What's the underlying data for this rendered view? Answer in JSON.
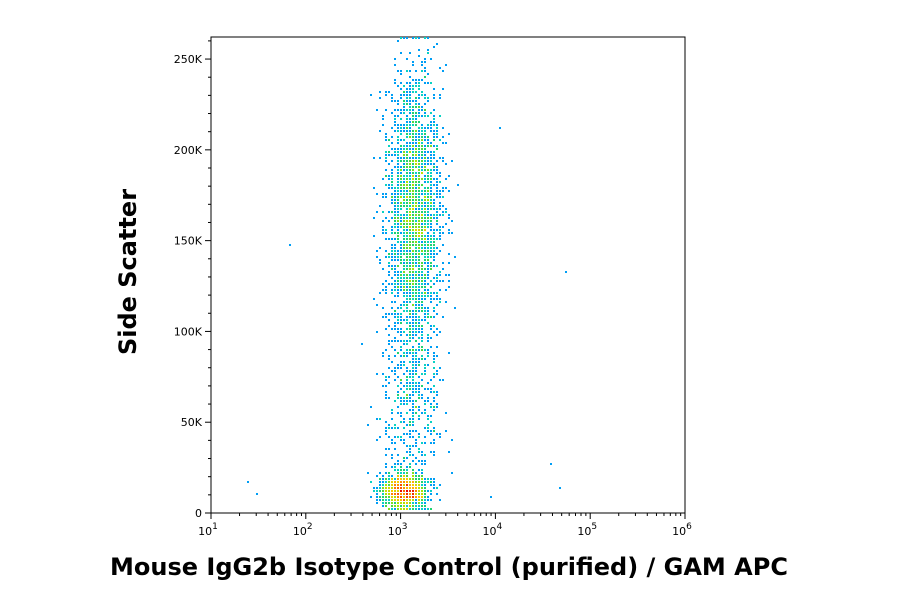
{
  "chart_data": {
    "type": "scatter",
    "title": "",
    "xlabel": "Mouse IgG2b Isotype Control (purified) / GAM APC",
    "ylabel": "Side Scatter",
    "xscale": "log",
    "xlim": [
      10,
      1000000
    ],
    "ylim": [
      0,
      262144
    ],
    "grid": false,
    "colormap": "density: blue → cyan → green → yellow → orange → red",
    "x_ticks": [
      {
        "value": 10,
        "base": "10",
        "exp": "1"
      },
      {
        "value": 100,
        "base": "10",
        "exp": "2"
      },
      {
        "value": 1000,
        "base": "10",
        "exp": "3"
      },
      {
        "value": 10000,
        "base": "10",
        "exp": "4"
      },
      {
        "value": 100000,
        "base": "10",
        "exp": "5"
      },
      {
        "value": 1000000,
        "base": "10",
        "exp": "6"
      }
    ],
    "y_ticks": [
      {
        "value": 0,
        "label": "0"
      },
      {
        "value": 50000,
        "label": "50K"
      },
      {
        "value": 100000,
        "label": "100K"
      },
      {
        "value": 150000,
        "label": "150K"
      },
      {
        "value": 200000,
        "label": "200K"
      },
      {
        "value": 250000,
        "label": "250K"
      }
    ],
    "populations": [
      {
        "name": "",
        "x_center": 1100,
        "y_center": 12000,
        "x_spread_log": 0.11,
        "y_spread": 5000,
        "points": 1400
      },
      {
        "name": "",
        "x_center": 1400,
        "y_center": 165000,
        "x_spread_log": 0.13,
        "y_spread": 38000,
        "points": 2600
      },
      {
        "name": "",
        "x_center": 1350,
        "y_center": 65000,
        "x_spread_log": 0.14,
        "y_spread": 25000,
        "points": 450
      }
    ],
    "outliers": [
      {
        "x": 70,
        "y": 148000
      },
      {
        "x": 55000,
        "y": 132000
      },
      {
        "x": 11000,
        "y": 212000
      },
      {
        "x": 38000,
        "y": 27000
      },
      {
        "x": 50000,
        "y": 14000
      },
      {
        "x": 9000,
        "y": 9000
      },
      {
        "x": 25,
        "y": 17000
      },
      {
        "x": 30,
        "y": 10000
      },
      {
        "x": 4000,
        "y": 180000
      }
    ]
  }
}
